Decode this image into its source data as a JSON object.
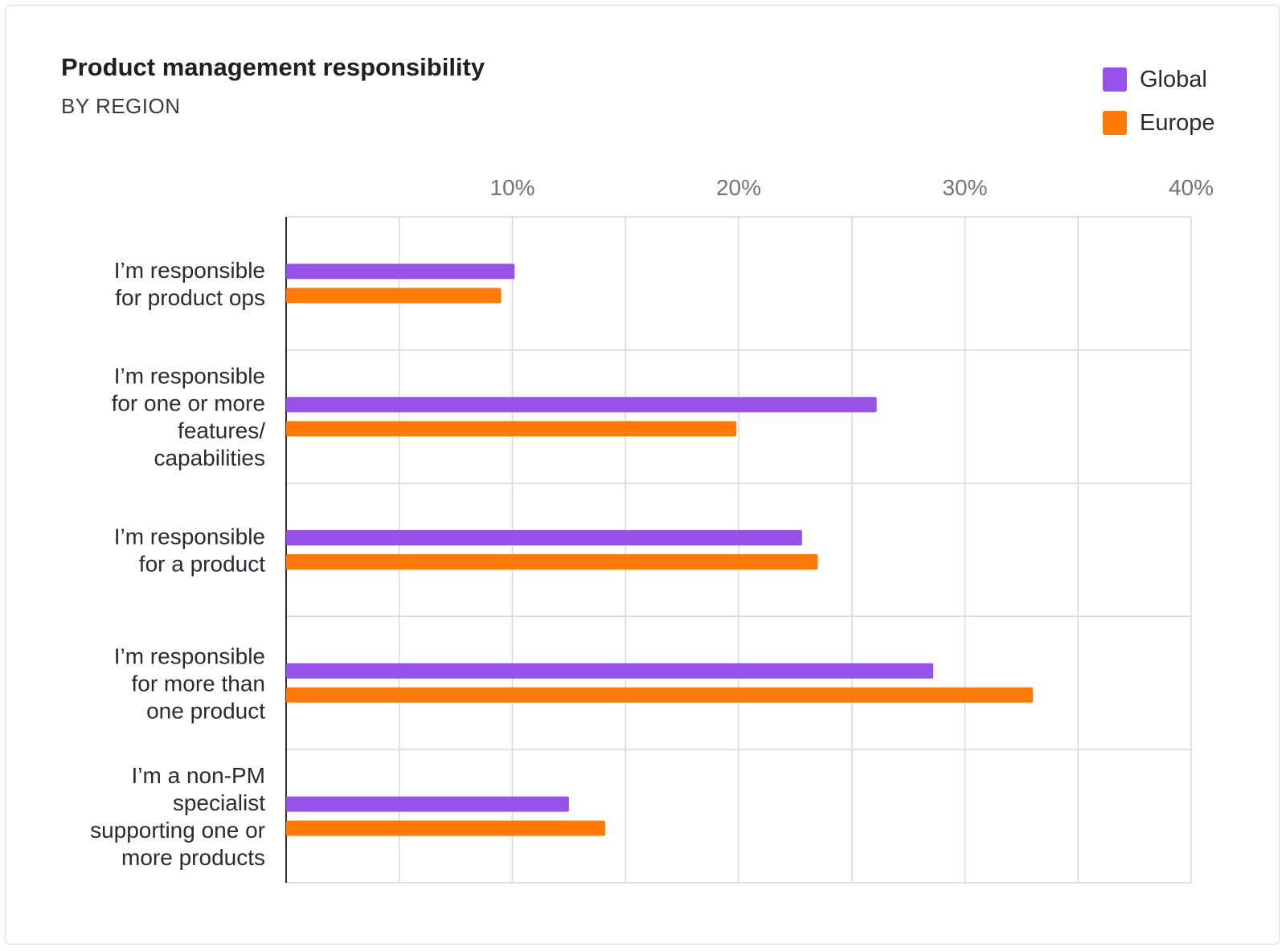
{
  "chart_data": {
    "type": "bar",
    "orientation": "horizontal",
    "title": "Product management responsibility",
    "subtitle": "BY REGION",
    "xlim": [
      0,
      40
    ],
    "ticks": [
      10,
      20,
      30,
      40
    ],
    "tick_labels": [
      "10%",
      "20%",
      "30%",
      "40%"
    ],
    "grid": true,
    "legend_position": "top-right",
    "categories": [
      [
        "I’m responsible",
        "for product ops"
      ],
      [
        "I’m responsible",
        "for one or more",
        "features/",
        "capabilities"
      ],
      [
        "I’m responsible",
        "for a product"
      ],
      [
        "I’m responsible",
        "for more than",
        "one product"
      ],
      [
        "I’m a non-PM",
        "specialist",
        "supporting one or",
        "more products"
      ]
    ],
    "series": [
      {
        "name": "Global",
        "color": "#9551e8",
        "values": [
          10.1,
          26.1,
          22.8,
          28.6,
          12.5
        ]
      },
      {
        "name": "Europe",
        "color": "#ff7a0a",
        "values": [
          9.5,
          19.9,
          23.5,
          33.0,
          14.1
        ]
      }
    ]
  }
}
